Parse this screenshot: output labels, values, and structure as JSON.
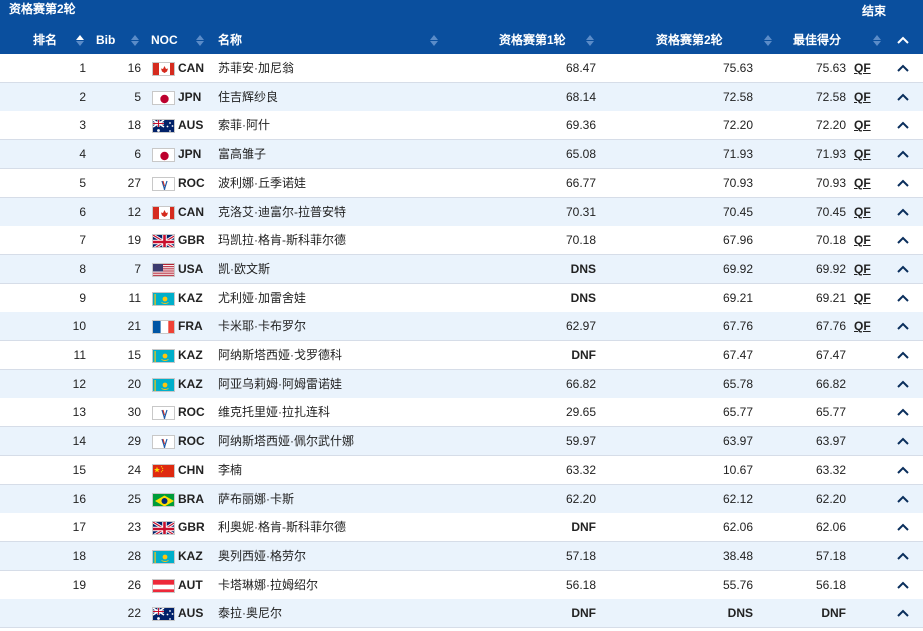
{
  "topbar": {
    "title": "资格赛第2轮",
    "status": "结束"
  },
  "columns": {
    "rank": "排名",
    "bib": "Bib",
    "noc": "NOC",
    "name": "名称",
    "run1": "资格赛第1轮",
    "run2": "资格赛第2轮",
    "best": "最佳得分"
  },
  "colors": {
    "header": "#0a4f9e",
    "row_alt": "#eaf3fc"
  },
  "rows": [
    {
      "rank": "1",
      "bib": "16",
      "noc": "CAN",
      "flag": "canada-flag-icon",
      "name": "苏菲安·加尼翁",
      "run1": "68.47",
      "run2": "75.63",
      "best": "75.63",
      "q": "QF"
    },
    {
      "rank": "2",
      "bib": "5",
      "noc": "JPN",
      "flag": "japan-flag-icon",
      "name": "住吉辉纱良",
      "run1": "68.14",
      "run2": "72.58",
      "best": "72.58",
      "q": "QF"
    },
    {
      "rank": "3",
      "bib": "18",
      "noc": "AUS",
      "flag": "australia-flag-icon",
      "name": "索菲·阿什",
      "run1": "69.36",
      "run2": "72.20",
      "best": "72.20",
      "q": "QF"
    },
    {
      "rank": "4",
      "bib": "6",
      "noc": "JPN",
      "flag": "japan-flag-icon",
      "name": "富高雏子",
      "run1": "65.08",
      "run2": "71.93",
      "best": "71.93",
      "q": "QF"
    },
    {
      "rank": "5",
      "bib": "27",
      "noc": "ROC",
      "flag": "roc-flag-icon",
      "name": "波利娜·丘季诺娃",
      "run1": "66.77",
      "run2": "70.93",
      "best": "70.93",
      "q": "QF"
    },
    {
      "rank": "6",
      "bib": "12",
      "noc": "CAN",
      "flag": "canada-flag-icon",
      "name": "克洛艾·迪富尔-拉普安特",
      "run1": "70.31",
      "run2": "70.45",
      "best": "70.45",
      "q": "QF"
    },
    {
      "rank": "7",
      "bib": "19",
      "noc": "GBR",
      "flag": "uk-flag-icon",
      "name": "玛凯拉·格肯-斯科菲尔德",
      "run1": "70.18",
      "run2": "67.96",
      "best": "70.18",
      "q": "QF"
    },
    {
      "rank": "8",
      "bib": "7",
      "noc": "USA",
      "flag": "usa-flag-icon",
      "name": "凯·欧文斯",
      "run1": "DNS",
      "run2": "69.92",
      "best": "69.92",
      "q": "QF"
    },
    {
      "rank": "9",
      "bib": "11",
      "noc": "KAZ",
      "flag": "kazakhstan-flag-icon",
      "name": "尤利娅·加雷舍娃",
      "run1": "DNS",
      "run2": "69.21",
      "best": "69.21",
      "q": "QF"
    },
    {
      "rank": "10",
      "bib": "21",
      "noc": "FRA",
      "flag": "france-flag-icon",
      "name": "卡米耶·卡布罗尔",
      "run1": "62.97",
      "run2": "67.76",
      "best": "67.76",
      "q": "QF"
    },
    {
      "rank": "11",
      "bib": "15",
      "noc": "KAZ",
      "flag": "kazakhstan-flag-icon",
      "name": "阿纳斯塔西娅·戈罗德科",
      "run1": "DNF",
      "run2": "67.47",
      "best": "67.47",
      "q": ""
    },
    {
      "rank": "12",
      "bib": "20",
      "noc": "KAZ",
      "flag": "kazakhstan-flag-icon",
      "name": "阿亚乌莉姆·阿姆雷诺娃",
      "run1": "66.82",
      "run2": "65.78",
      "best": "66.82",
      "q": ""
    },
    {
      "rank": "13",
      "bib": "30",
      "noc": "ROC",
      "flag": "roc-flag-icon",
      "name": "维克托里娅·拉扎连科",
      "run1": "29.65",
      "run2": "65.77",
      "best": "65.77",
      "q": ""
    },
    {
      "rank": "14",
      "bib": "29",
      "noc": "ROC",
      "flag": "roc-flag-icon",
      "name": "阿纳斯塔西娅·佩尔武什娜",
      "run1": "59.97",
      "run2": "63.97",
      "best": "63.97",
      "q": ""
    },
    {
      "rank": "15",
      "bib": "24",
      "noc": "CHN",
      "flag": "china-flag-icon",
      "name": "李楠",
      "run1": "63.32",
      "run2": "10.67",
      "best": "63.32",
      "q": ""
    },
    {
      "rank": "16",
      "bib": "25",
      "noc": "BRA",
      "flag": "brazil-flag-icon",
      "name": "萨布丽娜·卡斯",
      "run1": "62.20",
      "run2": "62.12",
      "best": "62.20",
      "q": ""
    },
    {
      "rank": "17",
      "bib": "23",
      "noc": "GBR",
      "flag": "uk-flag-icon",
      "name": "利奥妮·格肯-斯科菲尔德",
      "run1": "DNF",
      "run2": "62.06",
      "best": "62.06",
      "q": ""
    },
    {
      "rank": "18",
      "bib": "28",
      "noc": "KAZ",
      "flag": "kazakhstan-flag-icon",
      "name": "奥列西娅·格劳尔",
      "run1": "57.18",
      "run2": "38.48",
      "best": "57.18",
      "q": ""
    },
    {
      "rank": "19",
      "bib": "26",
      "noc": "AUT",
      "flag": "austria-flag-icon",
      "name": "卡塔琳娜·拉姆绍尔",
      "run1": "56.18",
      "run2": "55.76",
      "best": "56.18",
      "q": ""
    },
    {
      "rank": "",
      "bib": "22",
      "noc": "AUS",
      "flag": "australia-flag-icon",
      "name": "泰拉·奥尼尔",
      "run1": "DNF",
      "run2": "DNS",
      "best": "DNF",
      "q": ""
    }
  ]
}
